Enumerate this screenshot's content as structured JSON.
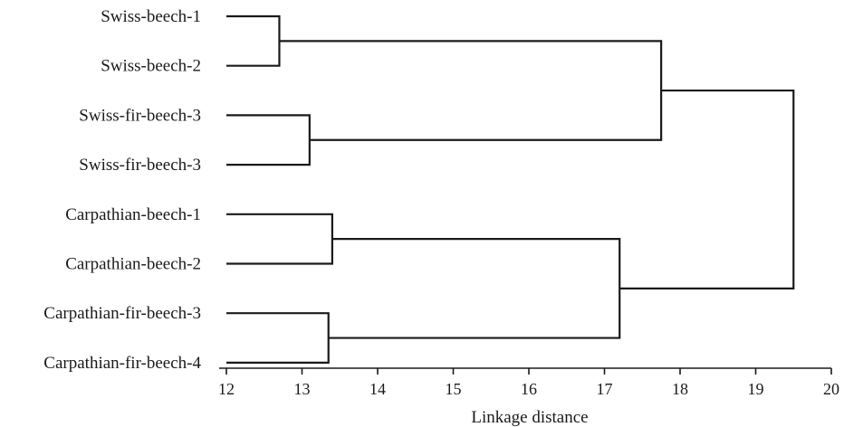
{
  "chart_data": {
    "type": "dendrogram",
    "xlabel": "Linkage distance",
    "xlim": [
      12,
      20
    ],
    "x_ticks": [
      12,
      13,
      14,
      15,
      16,
      17,
      18,
      19,
      20
    ],
    "leaves": [
      "Swiss-beech-1",
      "Swiss-beech-2",
      "Swiss-fir-beech-3",
      "Swiss-fir-beech-3",
      "Carpathian-beech-1",
      "Carpathian-beech-2",
      "Carpathian-fir-beech-3",
      "Carpathian-fir-beech-4"
    ],
    "merges": [
      {
        "left": "L0",
        "right": "L1",
        "distance": 12.7
      },
      {
        "left": "L2",
        "right": "L3",
        "distance": 13.1
      },
      {
        "left": "L4",
        "right": "L5",
        "distance": 13.4
      },
      {
        "left": "L6",
        "right": "L7",
        "distance": 13.35
      },
      {
        "left": "M2",
        "right": "M3",
        "distance": 17.2
      },
      {
        "left": "M0",
        "right": "M1",
        "distance": 17.75
      },
      {
        "left": "M5",
        "right": "M4",
        "distance": 19.5
      }
    ]
  }
}
